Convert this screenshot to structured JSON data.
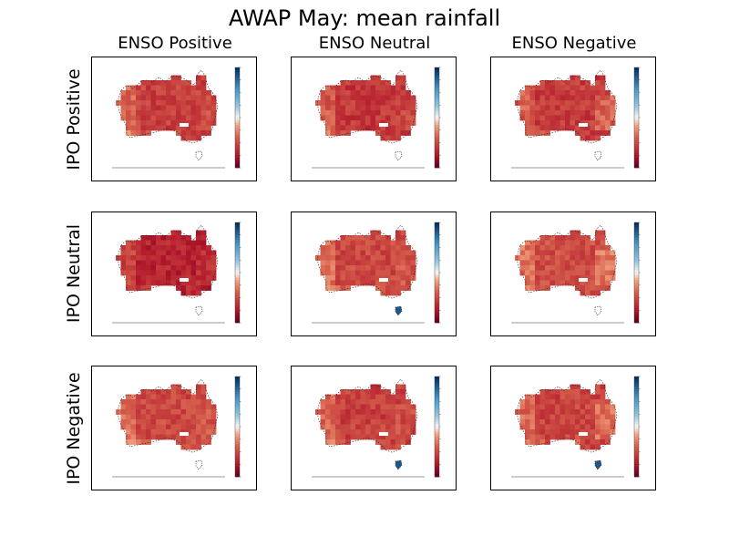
{
  "chart_data": {
    "type": "heatmap",
    "title": "AWAP May: mean rainfall",
    "col_labels": [
      "ENSO Positive",
      "ENSO Neutral",
      "ENSO Negative"
    ],
    "row_labels": [
      "IPO Positive",
      "IPO Neutral",
      "IPO Negative"
    ],
    "colormap": "RdBu",
    "colors": {
      "dry": "#8b0a20",
      "mid_dry": "#d6604d",
      "neutral": "#f7f7f7",
      "wet": "#2166ac"
    },
    "panels": [
      {
        "row": "IPO Positive",
        "col": "ENSO Positive",
        "tone": 0.22
      },
      {
        "row": "IPO Positive",
        "col": "ENSO Neutral",
        "tone": 0.2
      },
      {
        "row": "IPO Positive",
        "col": "ENSO Negative",
        "tone": 0.21
      },
      {
        "row": "IPO Neutral",
        "col": "ENSO Positive",
        "tone": 0.15
      },
      {
        "row": "IPO Neutral",
        "col": "ENSO Neutral",
        "tone": 0.24
      },
      {
        "row": "IPO Neutral",
        "col": "ENSO Negative",
        "tone": 0.25
      },
      {
        "row": "IPO Negative",
        "col": "ENSO Positive",
        "tone": 0.24
      },
      {
        "row": "IPO Negative",
        "col": "ENSO Neutral",
        "tone": 0.22
      },
      {
        "row": "IPO Negative",
        "col": "ENSO Negative",
        "tone": 0.23
      }
    ]
  }
}
